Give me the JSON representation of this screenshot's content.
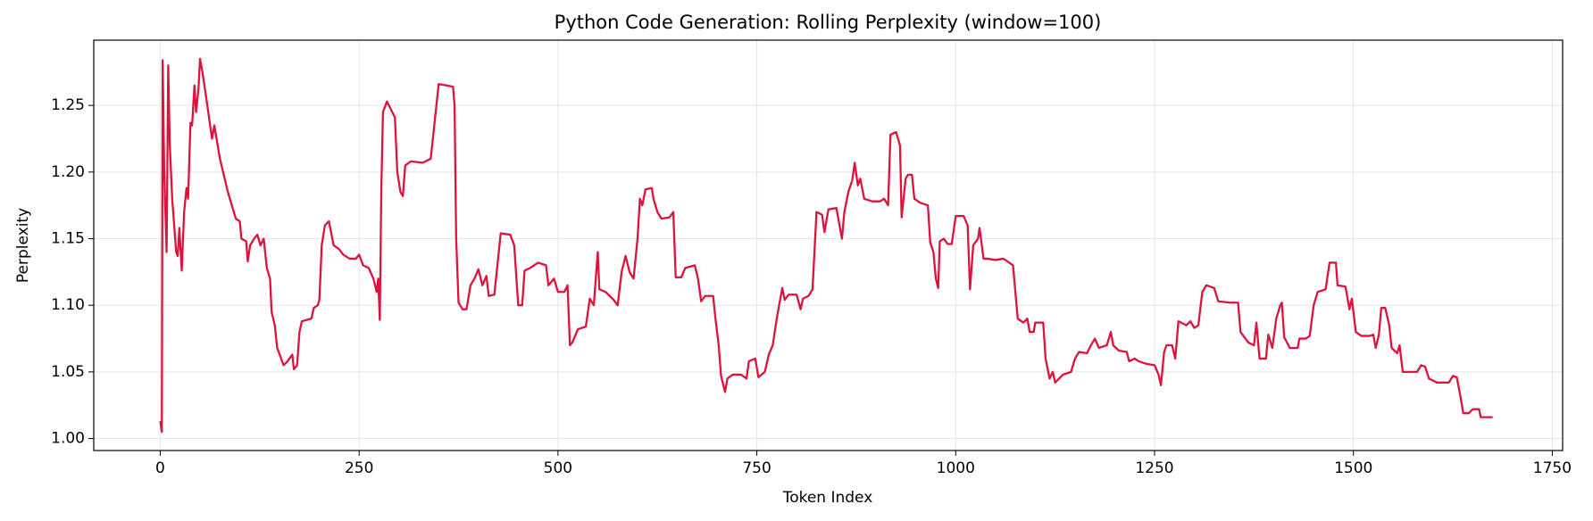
{
  "chart_data": {
    "type": "line",
    "title": "Python Code Generation: Rolling Perplexity (window=100)",
    "x_label": "Token Index",
    "y_label": "Perplexity",
    "x": [
      0,
      2,
      3,
      5,
      8,
      10,
      12,
      15,
      20,
      22,
      24,
      27,
      30,
      33,
      35,
      38,
      40,
      43,
      45,
      48,
      50,
      53,
      58,
      62,
      65,
      68,
      75,
      85,
      95,
      100,
      102,
      108,
      110,
      113,
      118,
      122,
      126,
      130,
      134,
      138,
      140,
      144,
      147,
      152,
      155,
      160,
      166,
      168,
      172,
      175,
      178,
      190,
      193,
      198,
      200,
      203,
      207,
      212,
      218,
      225,
      230,
      238,
      246,
      250,
      255,
      262,
      268,
      272,
      274,
      276,
      278,
      280,
      285,
      290,
      295,
      298,
      302,
      305,
      308,
      315,
      330,
      340,
      345,
      350,
      360,
      368,
      370,
      372,
      375,
      380,
      385,
      390,
      395,
      400,
      405,
      410,
      413,
      420,
      428,
      440,
      445,
      450,
      455,
      458,
      465,
      475,
      485,
      488,
      495,
      500,
      508,
      512,
      515,
      518,
      525,
      535,
      540,
      545,
      550,
      552,
      560,
      570,
      575,
      580,
      585,
      590,
      595,
      600,
      603,
      606,
      610,
      618,
      620,
      625,
      630,
      640,
      645,
      648,
      655,
      660,
      672,
      676,
      680,
      685,
      695,
      698,
      702,
      705,
      710,
      713,
      720,
      730,
      737,
      740,
      748,
      752,
      760,
      765,
      770,
      775,
      778,
      782,
      785,
      790,
      800,
      805,
      808,
      815,
      820,
      825,
      832,
      835,
      840,
      850,
      857,
      860,
      865,
      870,
      873,
      877,
      880,
      885,
      895,
      905,
      910,
      915,
      918,
      925,
      930,
      932,
      937,
      940,
      945,
      948,
      955,
      960,
      965,
      968,
      972,
      975,
      978,
      980,
      985,
      990,
      995,
      1000,
      1010,
      1015,
      1018,
      1022,
      1028,
      1030,
      1035,
      1040,
      1050,
      1060,
      1065,
      1072,
      1078,
      1085,
      1090,
      1093,
      1098,
      1100,
      1110,
      1113,
      1118,
      1122,
      1125,
      1130,
      1135,
      1145,
      1150,
      1155,
      1165,
      1170,
      1175,
      1180,
      1190,
      1195,
      1198,
      1205,
      1215,
      1218,
      1225,
      1230,
      1240,
      1250,
      1255,
      1258,
      1262,
      1265,
      1272,
      1276,
      1280,
      1290,
      1295,
      1300,
      1305,
      1310,
      1315,
      1325,
      1330,
      1345,
      1355,
      1358,
      1368,
      1375,
      1378,
      1382,
      1390,
      1393,
      1398,
      1403,
      1408,
      1410,
      1413,
      1420,
      1430,
      1432,
      1440,
      1445,
      1450,
      1455,
      1465,
      1470,
      1478,
      1480,
      1490,
      1495,
      1498,
      1503,
      1510,
      1520,
      1525,
      1528,
      1532,
      1535,
      1540,
      1545,
      1548,
      1555,
      1558,
      1562,
      1570,
      1580,
      1585,
      1590,
      1595,
      1605,
      1620,
      1625,
      1630,
      1635,
      1638,
      1645,
      1650,
      1658,
      1660,
      1675
    ],
    "series": [
      {
        "name": "Rolling Perplexity",
        "color": "#dc143c",
        "values": [
          1.013,
          1.005,
          1.284,
          1.2,
          1.14,
          1.28,
          1.22,
          1.18,
          1.14,
          1.137,
          1.158,
          1.126,
          1.17,
          1.188,
          1.18,
          1.237,
          1.235,
          1.265,
          1.245,
          1.262,
          1.285,
          1.275,
          1.255,
          1.238,
          1.225,
          1.235,
          1.21,
          1.185,
          1.165,
          1.163,
          1.15,
          1.148,
          1.133,
          1.145,
          1.15,
          1.153,
          1.145,
          1.15,
          1.128,
          1.12,
          1.095,
          1.085,
          1.068,
          1.06,
          1.055,
          1.058,
          1.063,
          1.052,
          1.055,
          1.08,
          1.088,
          1.09,
          1.098,
          1.1,
          1.104,
          1.145,
          1.16,
          1.163,
          1.145,
          1.142,
          1.138,
          1.135,
          1.135,
          1.138,
          1.13,
          1.128,
          1.12,
          1.11,
          1.12,
          1.089,
          1.19,
          1.245,
          1.253,
          1.247,
          1.241,
          1.2,
          1.185,
          1.182,
          1.205,
          1.208,
          1.207,
          1.21,
          1.238,
          1.266,
          1.265,
          1.264,
          1.25,
          1.15,
          1.102,
          1.097,
          1.097,
          1.115,
          1.12,
          1.127,
          1.115,
          1.122,
          1.107,
          1.108,
          1.154,
          1.153,
          1.145,
          1.1,
          1.1,
          1.126,
          1.128,
          1.132,
          1.13,
          1.115,
          1.12,
          1.11,
          1.11,
          1.115,
          1.07,
          1.072,
          1.082,
          1.084,
          1.105,
          1.1,
          1.14,
          1.112,
          1.11,
          1.104,
          1.1,
          1.125,
          1.137,
          1.125,
          1.12,
          1.15,
          1.18,
          1.175,
          1.187,
          1.188,
          1.18,
          1.17,
          1.165,
          1.166,
          1.17,
          1.121,
          1.121,
          1.128,
          1.13,
          1.12,
          1.103,
          1.107,
          1.107,
          1.09,
          1.07,
          1.047,
          1.035,
          1.045,
          1.048,
          1.048,
          1.045,
          1.058,
          1.06,
          1.046,
          1.05,
          1.063,
          1.07,
          1.09,
          1.1,
          1.113,
          1.104,
          1.108,
          1.108,
          1.097,
          1.105,
          1.107,
          1.112,
          1.17,
          1.168,
          1.155,
          1.172,
          1.173,
          1.15,
          1.17,
          1.185,
          1.194,
          1.207,
          1.19,
          1.195,
          1.18,
          1.178,
          1.178,
          1.18,
          1.175,
          1.228,
          1.23,
          1.22,
          1.166,
          1.195,
          1.198,
          1.198,
          1.18,
          1.177,
          1.176,
          1.175,
          1.147,
          1.14,
          1.12,
          1.113,
          1.148,
          1.15,
          1.146,
          1.146,
          1.167,
          1.167,
          1.16,
          1.112,
          1.145,
          1.15,
          1.158,
          1.135,
          1.135,
          1.134,
          1.135,
          1.133,
          1.13,
          1.09,
          1.087,
          1.09,
          1.08,
          1.08,
          1.087,
          1.087,
          1.06,
          1.045,
          1.05,
          1.042,
          1.045,
          1.048,
          1.05,
          1.06,
          1.065,
          1.064,
          1.07,
          1.075,
          1.068,
          1.07,
          1.08,
          1.07,
          1.066,
          1.065,
          1.058,
          1.06,
          1.058,
          1.056,
          1.055,
          1.048,
          1.04,
          1.065,
          1.07,
          1.07,
          1.06,
          1.088,
          1.085,
          1.088,
          1.083,
          1.085,
          1.11,
          1.115,
          1.113,
          1.103,
          1.102,
          1.102,
          1.08,
          1.072,
          1.07,
          1.087,
          1.06,
          1.06,
          1.078,
          1.068,
          1.09,
          1.1,
          1.102,
          1.076,
          1.068,
          1.068,
          1.075,
          1.075,
          1.077,
          1.1,
          1.11,
          1.112,
          1.132,
          1.132,
          1.115,
          1.114,
          1.097,
          1.105,
          1.08,
          1.077,
          1.077,
          1.078,
          1.068,
          1.078,
          1.098,
          1.098,
          1.085,
          1.068,
          1.064,
          1.07,
          1.05,
          1.05,
          1.05,
          1.055,
          1.054,
          1.045,
          1.042,
          1.042,
          1.047,
          1.046,
          1.03,
          1.019,
          1.019,
          1.022,
          1.022,
          1.016,
          1.016
        ]
      }
    ],
    "xlim": [
      -83.6,
      1763
    ],
    "ylim": [
      0.991,
      1.299
    ],
    "xticks": [
      0,
      250,
      500,
      750,
      1000,
      1250,
      1500,
      1750
    ],
    "yticks": [
      {
        "value": 1,
        "label": "1.00"
      },
      1.05,
      {
        "value": 1.1,
        "label": "1.10"
      },
      1.15,
      {
        "value": 1.2,
        "label": "1.20"
      },
      1.25
    ],
    "grid": true
  }
}
